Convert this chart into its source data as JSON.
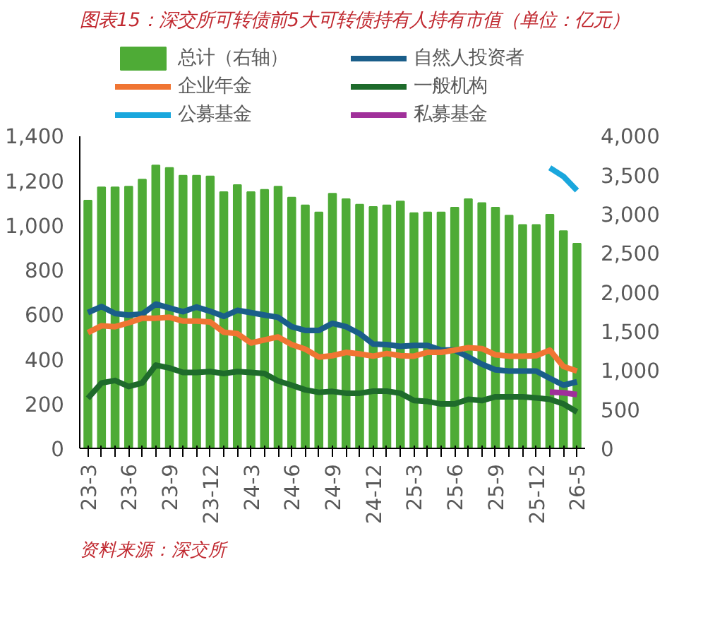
{
  "chart_data": {
    "type": "line",
    "title": "图表15：深交所可转债前5大可转债持有人持有市值（单位：亿元）",
    "categories": [
      "23-3",
      null,
      null,
      "23-6",
      null,
      null,
      "23-9",
      null,
      null,
      "23-12",
      null,
      null,
      "24-3",
      null,
      null,
      "24-6",
      null,
      null,
      "24-9",
      null,
      null,
      "24-12",
      null,
      null,
      "25-3",
      null,
      null,
      "25-6",
      null,
      null,
      "25-9",
      null,
      null,
      "25-12",
      null,
      null,
      "26-5"
    ],
    "series": [
      {
        "name": "总计（右轴）",
        "type": "bar",
        "axis": "y2",
        "color": "#4eab36",
        "values": [
          3170,
          3340,
          3340,
          3350,
          3440,
          3620,
          3590,
          3490,
          3490,
          3480,
          3280,
          3370,
          3280,
          3310,
          3350,
          3210,
          3110,
          3020,
          3260,
          3190,
          3120,
          3090,
          3110,
          3160,
          3010,
          3020,
          3020,
          3080,
          3190,
          3140,
          3080,
          2980,
          2860,
          2860,
          2990,
          2780,
          2620
        ]
      },
      {
        "name": "自然人投资者",
        "color": "#1a5e8a",
        "values": [
          608,
          635,
          604,
          597,
          602,
          646,
          629,
          612,
          633,
          614,
          591,
          618,
          608,
          597,
          587,
          545,
          528,
          528,
          560,
          545,
          514,
          467,
          465,
          457,
          461,
          461,
          440,
          440,
          409,
          377,
          352,
          346,
          346,
          346,
          314,
          283,
          298
        ]
      },
      {
        "name": "企业年金",
        "color": "#f07533",
        "values": [
          518,
          549,
          545,
          562,
          583,
          583,
          587,
          570,
          570,
          566,
          520,
          514,
          472,
          486,
          499,
          465,
          444,
          409,
          415,
          430,
          423,
          413,
          425,
          415,
          413,
          430,
          430,
          440,
          451,
          447,
          419,
          413,
          413,
          415,
          440,
          367,
          346
        ]
      },
      {
        "name": "一般机构",
        "color": "#1e6b2b",
        "values": [
          224,
          293,
          304,
          277,
          293,
          373,
          360,
          340,
          340,
          344,
          335,
          344,
          340,
          335,
          302,
          283,
          262,
          251,
          255,
          247,
          247,
          256,
          256,
          247,
          214,
          210,
          199,
          199,
          220,
          214,
          231,
          231,
          231,
          226,
          220,
          199,
          163
        ]
      },
      {
        "name": "公募基金",
        "axis": "y2",
        "color": "#1aa7dd",
        "values": [
          null,
          null,
          null,
          null,
          null,
          null,
          null,
          null,
          null,
          null,
          null,
          null,
          null,
          null,
          null,
          null,
          null,
          null,
          null,
          null,
          null,
          null,
          null,
          null,
          null,
          null,
          null,
          null,
          null,
          null,
          null,
          null,
          null,
          null,
          3590,
          3480,
          3300
        ]
      },
      {
        "name": "私募基金",
        "color": "#a0309a",
        "values": [
          null,
          null,
          null,
          null,
          null,
          null,
          null,
          null,
          null,
          null,
          null,
          null,
          null,
          null,
          null,
          null,
          null,
          null,
          null,
          null,
          null,
          null,
          null,
          null,
          null,
          null,
          null,
          null,
          null,
          null,
          null,
          null,
          null,
          null,
          252,
          249,
          241
        ]
      }
    ],
    "ylim": [
      0,
      1400
    ],
    "yticks": [
      0,
      200,
      400,
      600,
      800,
      {
        "value": 1000,
        "label": "1,000"
      },
      {
        "value": 1200,
        "label": "1,200"
      },
      {
        "value": 1400,
        "label": "1,400"
      }
    ],
    "y2lim": [
      0,
      4000
    ],
    "y2ticks": [
      0,
      500,
      {
        "value": 1000,
        "label": "1,000"
      },
      {
        "value": 1500,
        "label": "1,500"
      },
      {
        "value": 2000,
        "label": "2,000"
      },
      {
        "value": 2500,
        "label": "2,500"
      },
      {
        "value": 3000,
        "label": "3,000"
      },
      {
        "value": 3500,
        "label": "3,500"
      },
      {
        "value": 4000,
        "label": "4,000"
      }
    ],
    "legend": "top",
    "grid": false,
    "annotations": [
      "资料来源：深交所"
    ]
  }
}
